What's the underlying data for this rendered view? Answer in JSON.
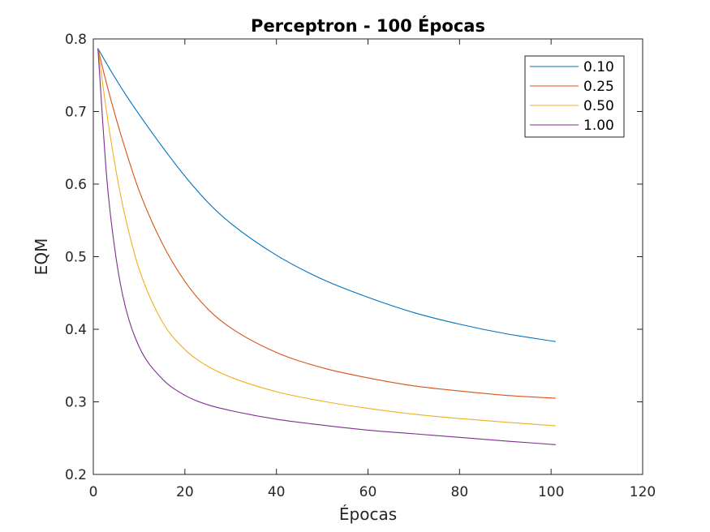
{
  "chart_data": {
    "type": "line",
    "title": "Perceptron - 100 Épocas",
    "xlabel": "Épocas",
    "ylabel": "EQM",
    "xlim": [
      0,
      120
    ],
    "ylim": [
      0.2,
      0.8
    ],
    "xticks": [
      0,
      20,
      40,
      60,
      80,
      100,
      120
    ],
    "yticks": [
      0.2,
      0.3,
      0.4,
      0.5,
      0.6,
      0.7,
      0.8
    ],
    "xtick_labels": [
      "0",
      "20",
      "40",
      "60",
      "80",
      "100",
      "120"
    ],
    "ytick_labels": [
      "0.2",
      "0.3",
      "0.4",
      "0.5",
      "0.6",
      "0.7",
      "0.8"
    ],
    "grid": false,
    "legend_position": "top-right",
    "x": [
      1,
      3,
      5,
      7,
      10,
      15,
      20,
      25,
      30,
      40,
      50,
      60,
      70,
      80,
      90,
      101
    ],
    "series": [
      {
        "name": "0.10",
        "color": "#0072BD",
        "values": [
          0.787,
          0.765,
          0.744,
          0.724,
          0.696,
          0.652,
          0.611,
          0.575,
          0.546,
          0.502,
          0.469,
          0.444,
          0.423,
          0.407,
          0.394,
          0.383
        ]
      },
      {
        "name": "0.25",
        "color": "#D95319",
        "values": [
          0.787,
          0.736,
          0.69,
          0.648,
          0.591,
          0.519,
          0.466,
          0.428,
          0.402,
          0.368,
          0.347,
          0.333,
          0.322,
          0.315,
          0.309,
          0.305
        ]
      },
      {
        "name": "0.50",
        "color": "#EDB120",
        "values": [
          0.787,
          0.695,
          0.617,
          0.554,
          0.483,
          0.411,
          0.372,
          0.349,
          0.334,
          0.314,
          0.301,
          0.291,
          0.283,
          0.277,
          0.272,
          0.267
        ]
      },
      {
        "name": "1.00",
        "color": "#7E2F8E",
        "values": [
          0.787,
          0.604,
          0.497,
          0.431,
          0.376,
          0.332,
          0.309,
          0.296,
          0.288,
          0.276,
          0.268,
          0.261,
          0.256,
          0.251,
          0.246,
          0.241
        ]
      }
    ]
  }
}
